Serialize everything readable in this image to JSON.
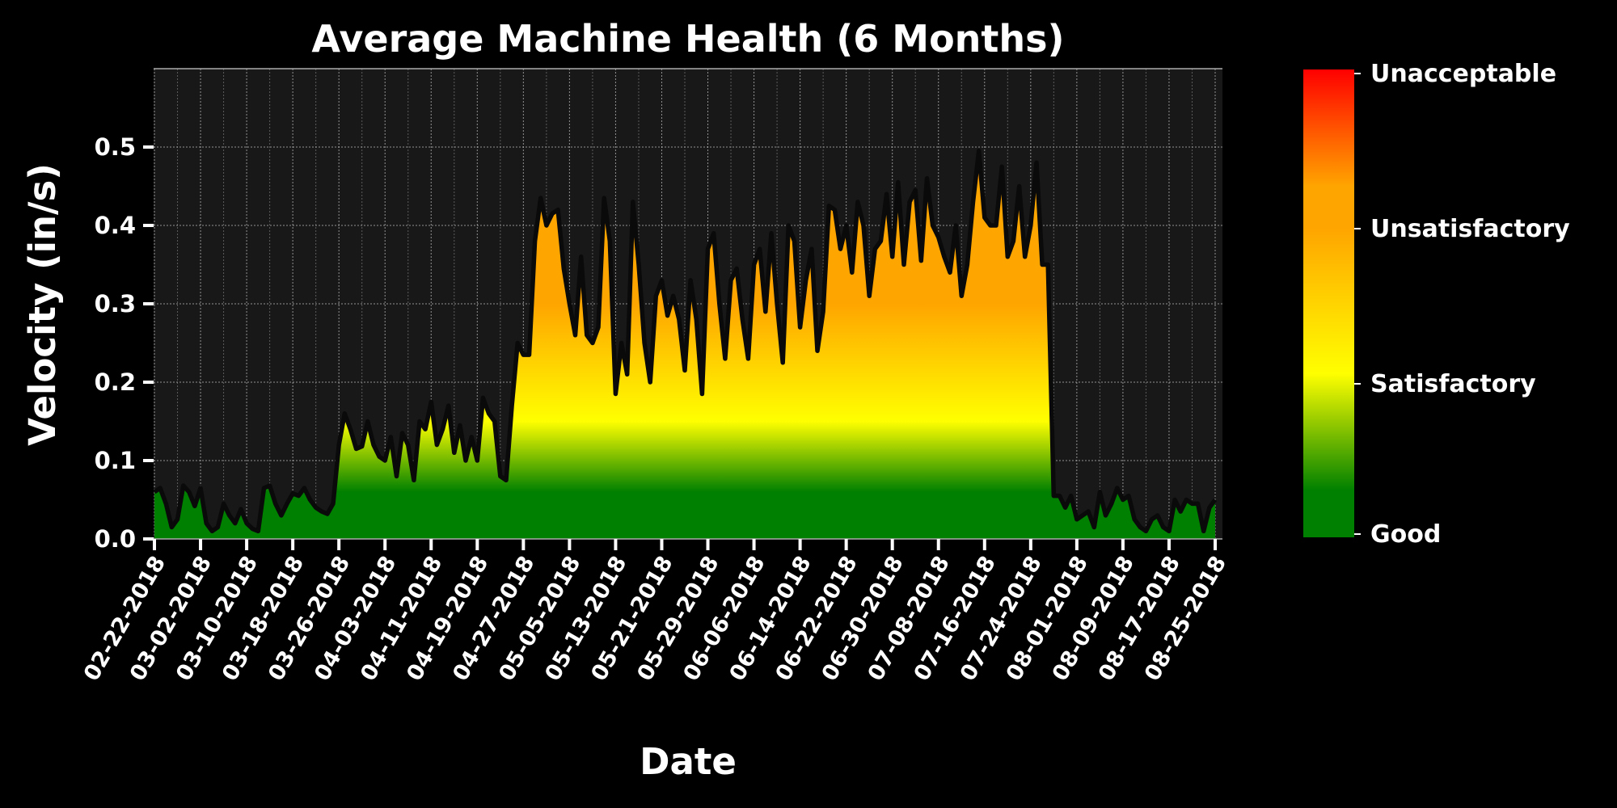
{
  "chart_data": {
    "type": "area",
    "title": "Average Machine Health (6 Months)",
    "xlabel": "Date",
    "ylabel": "Velocity (in/s)",
    "x_start": "2018-02-22",
    "x_tick_labels": [
      "02-22-2018",
      "03-02-2018",
      "03-10-2018",
      "03-18-2018",
      "03-26-2018",
      "04-03-2018",
      "04-11-2018",
      "04-19-2018",
      "04-27-2018",
      "05-05-2018",
      "05-13-2018",
      "05-21-2018",
      "05-29-2018",
      "06-06-2018",
      "06-14-2018",
      "06-22-2018",
      "06-30-2018",
      "07-08-2018",
      "07-16-2018",
      "07-24-2018",
      "08-01-2018",
      "08-09-2018",
      "08-17-2018",
      "08-25-2018"
    ],
    "y_ticks": [
      0.0,
      0.1,
      0.2,
      0.3,
      0.4,
      0.5
    ],
    "y_tick_labels": [
      "0.0",
      "0.1",
      "0.2",
      "0.3",
      "0.4",
      "0.5"
    ],
    "ylim": [
      0,
      0.6
    ],
    "grid": true,
    "series": [
      {
        "values": [
          0.06,
          0.065,
          0.045,
          0.015,
          0.025,
          0.068,
          0.06,
          0.042,
          0.065,
          0.02,
          0.01,
          0.015,
          0.045,
          0.03,
          0.02,
          0.038,
          0.02,
          0.013,
          0.01,
          0.065,
          0.068,
          0.045,
          0.03,
          0.045,
          0.058,
          0.055,
          0.065,
          0.05,
          0.04,
          0.035,
          0.032,
          0.045,
          0.12,
          0.16,
          0.14,
          0.115,
          0.118,
          0.15,
          0.12,
          0.105,
          0.1,
          0.13,
          0.08,
          0.135,
          0.12,
          0.075,
          0.15,
          0.14,
          0.175,
          0.12,
          0.14,
          0.17,
          0.11,
          0.145,
          0.1,
          0.13,
          0.1,
          0.18,
          0.16,
          0.15,
          0.08,
          0.075,
          0.17,
          0.25,
          0.235,
          0.235,
          0.38,
          0.435,
          0.4,
          0.415,
          0.42,
          0.345,
          0.3,
          0.26,
          0.36,
          0.26,
          0.25,
          0.27,
          0.435,
          0.38,
          0.185,
          0.25,
          0.21,
          0.43,
          0.35,
          0.25,
          0.2,
          0.31,
          0.33,
          0.285,
          0.31,
          0.28,
          0.215,
          0.33,
          0.28,
          0.185,
          0.37,
          0.39,
          0.3,
          0.23,
          0.33,
          0.345,
          0.28,
          0.23,
          0.35,
          0.37,
          0.29,
          0.39,
          0.3,
          0.225,
          0.4,
          0.38,
          0.27,
          0.33,
          0.37,
          0.24,
          0.29,
          0.425,
          0.42,
          0.37,
          0.4,
          0.34,
          0.43,
          0.4,
          0.31,
          0.37,
          0.38,
          0.44,
          0.36,
          0.455,
          0.35,
          0.43,
          0.445,
          0.355,
          0.46,
          0.4,
          0.385,
          0.36,
          0.34,
          0.4,
          0.31,
          0.35,
          0.43,
          0.495,
          0.41,
          0.4,
          0.4,
          0.475,
          0.36,
          0.38,
          0.45,
          0.36,
          0.4,
          0.48,
          0.35,
          0.35,
          0.055,
          0.055,
          0.04,
          0.055,
          0.025,
          0.03,
          0.035,
          0.015,
          0.06,
          0.03,
          0.045,
          0.065,
          0.05,
          0.055,
          0.025,
          0.015,
          0.01,
          0.025,
          0.03,
          0.015,
          0.01,
          0.05,
          0.035,
          0.05,
          0.045,
          0.045,
          0.01,
          0.04,
          0.05
        ]
      }
    ],
    "colorbar": {
      "labels": [
        "Unacceptable",
        "Unsatisfactory",
        "Satisfactory",
        "Good"
      ],
      "colors": [
        "#ff0000",
        "#ffa500",
        "#ffff00",
        "#008000"
      ]
    },
    "background": "#000000",
    "plot_background": "#181818"
  }
}
